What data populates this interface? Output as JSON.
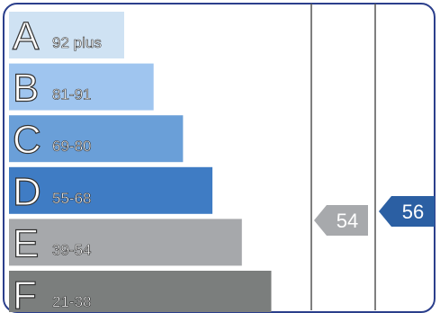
{
  "chart_data": {
    "type": "bar",
    "orientation": "horizontal",
    "bands": [
      {
        "letter": "A",
        "range": "92 plus",
        "color": "#cfe2f3"
      },
      {
        "letter": "B",
        "range": "81-91",
        "color": "#9fc5ef"
      },
      {
        "letter": "C",
        "range": "69-80",
        "color": "#6a9fd8"
      },
      {
        "letter": "D",
        "range": "55-68",
        "color": "#3f7cc4"
      },
      {
        "letter": "E",
        "range": "39-54",
        "color": "#a6a8ab"
      },
      {
        "letter": "F",
        "range": "21-38",
        "color": "#7b7e7d"
      }
    ],
    "markers": [
      {
        "value": "54",
        "color": "#a7a9ac",
        "text_color": "#ffffff"
      },
      {
        "value": "56",
        "color": "#2b5fa3",
        "text_color": "#ffffff"
      }
    ]
  },
  "colors": {
    "frame": "#2b3f8c",
    "divider": "#555555",
    "letter_text": "#ffffff",
    "letter_outline": "#333333",
    "range_text": "#ffffff"
  }
}
